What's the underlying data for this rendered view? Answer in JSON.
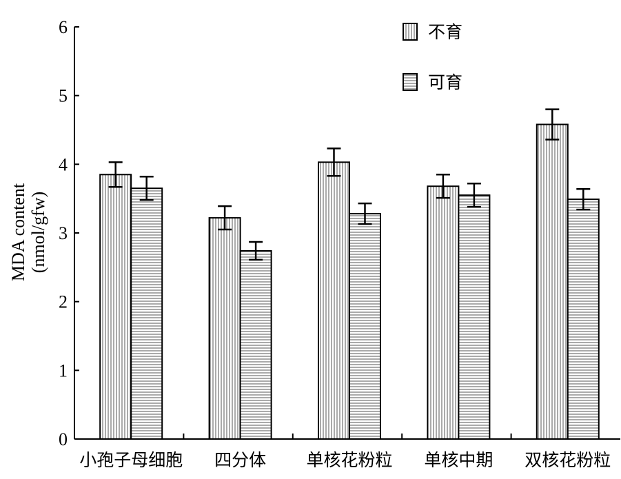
{
  "chart_data": {
    "type": "bar",
    "categories": [
      "小孢子母细胞",
      "四分体",
      "单核花粉粒",
      "单核中期",
      "双核花粉粒"
    ],
    "series": [
      {
        "name": "不育",
        "pattern": "vertical-stripes",
        "values": [
          3.85,
          3.22,
          4.03,
          3.68,
          4.58
        ],
        "errors": [
          0.18,
          0.17,
          0.2,
          0.17,
          0.22
        ]
      },
      {
        "name": "可育",
        "pattern": "horizontal-stripes",
        "values": [
          3.65,
          2.74,
          3.28,
          3.55,
          3.49
        ],
        "errors": [
          0.17,
          0.13,
          0.15,
          0.17,
          0.15
        ]
      }
    ],
    "ylabel_line1": "MDA content",
    "ylabel_line2": "(nmol/gfw)",
    "yticks": [
      "0",
      "1",
      "2",
      "3",
      "4",
      "5",
      "6"
    ],
    "ylim": [
      0,
      6
    ],
    "grid": false,
    "legend_position": "top-right",
    "colors": {
      "bar_fill": "#ffffff",
      "stroke": "#000000",
      "pattern": "#555555"
    }
  }
}
